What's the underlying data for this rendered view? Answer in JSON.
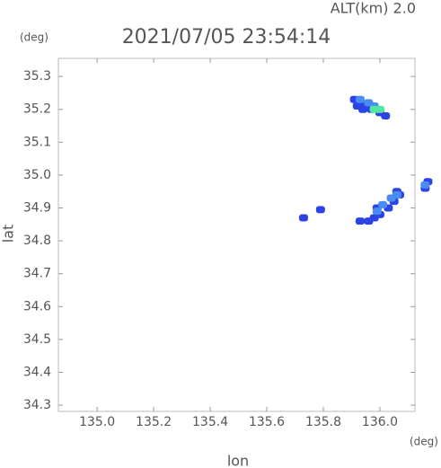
{
  "chart_data": {
    "type": "scatter",
    "title": "2021/07/05 23:54:14",
    "annotation": "ALT(km) 2.0",
    "x_unit": "(deg)",
    "y_unit": "(deg)",
    "x_label": "lon",
    "y_label": "lat",
    "xlim": [
      134.863,
      136.124
    ],
    "ylim": [
      34.281,
      35.355
    ],
    "xticks": [
      {
        "value": 135.0,
        "label": "135.0"
      },
      135.2,
      135.4,
      135.6,
      135.8,
      {
        "value": 136.0,
        "label": "136.0"
      }
    ],
    "yticks": [
      34.3,
      34.4,
      34.5,
      34.6,
      34.7,
      34.8,
      34.9,
      {
        "value": 35.0,
        "label": "35.0"
      },
      35.1,
      35.2,
      35.3
    ],
    "series": [
      {
        "color": "#2c44e6",
        "x": [
          135.91,
          135.93,
          135.95,
          135.97,
          136.0,
          136.02,
          135.92,
          135.94,
          135.93,
          135.96,
          135.98,
          136.0,
          136.03,
          136.05,
          136.07,
          136.06,
          135.99,
          135.73,
          135.79,
          136.16,
          136.17
        ],
        "y": [
          35.23,
          35.22,
          35.21,
          35.2,
          35.19,
          35.18,
          35.21,
          35.2,
          34.86,
          34.86,
          34.87,
          34.88,
          34.9,
          34.92,
          34.94,
          34.95,
          34.9,
          34.87,
          34.895,
          34.96,
          34.98
        ]
      },
      {
        "color": "#4a8cf0",
        "x": [
          135.93,
          135.96,
          135.98,
          136.01,
          136.04,
          136.06,
          135.99,
          136.16
        ],
        "y": [
          35.23,
          35.22,
          35.21,
          34.91,
          34.93,
          34.94,
          34.89,
          34.97
        ]
      },
      {
        "color": "#50e8a0",
        "x": [
          135.98,
          136.0
        ],
        "y": [
          35.2,
          35.2
        ]
      }
    ]
  }
}
